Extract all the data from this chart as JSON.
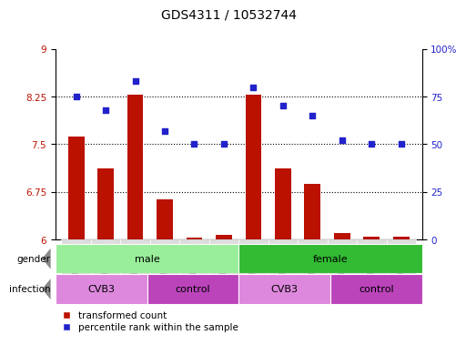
{
  "title": "GDS4311 / 10532744",
  "samples": [
    "GSM863119",
    "GSM863120",
    "GSM863121",
    "GSM863113",
    "GSM863114",
    "GSM863115",
    "GSM863116",
    "GSM863117",
    "GSM863118",
    "GSM863110",
    "GSM863111",
    "GSM863112"
  ],
  "red_values": [
    7.62,
    7.12,
    8.28,
    6.63,
    6.03,
    6.08,
    8.28,
    7.12,
    6.88,
    6.11,
    6.04,
    6.04
  ],
  "blue_values": [
    75,
    68,
    83,
    57,
    50,
    50,
    80,
    70,
    65,
    52,
    50,
    50
  ],
  "ymin": 6,
  "ymax": 9,
  "yticks": [
    6,
    6.75,
    7.5,
    8.25,
    9
  ],
  "y2min": 0,
  "y2max": 100,
  "y2ticks": [
    0,
    25,
    50,
    75,
    100
  ],
  "red_color": "#bb1100",
  "blue_color": "#2222cc",
  "gender_male_color": "#99ee99",
  "gender_female_color": "#33bb33",
  "infection_cvb3_color": "#dd88dd",
  "infection_control_color": "#bb44bb",
  "gender_groups": [
    {
      "label": "male",
      "start": 0,
      "end": 6
    },
    {
      "label": "female",
      "start": 6,
      "end": 12
    }
  ],
  "infection_groups": [
    {
      "label": "CVB3",
      "start": 0,
      "end": 3
    },
    {
      "label": "control",
      "start": 3,
      "end": 6
    },
    {
      "label": "CVB3",
      "start": 6,
      "end": 9
    },
    {
      "label": "control",
      "start": 9,
      "end": 12
    }
  ],
  "legend_red_label": "transformed count",
  "legend_blue_label": "percentile rank within the sample",
  "bar_width": 0.55,
  "hline_values": [
    6.75,
    7.5,
    8.25
  ],
  "hline_style": ":",
  "hline_color": "black",
  "hline_lw": 0.8
}
